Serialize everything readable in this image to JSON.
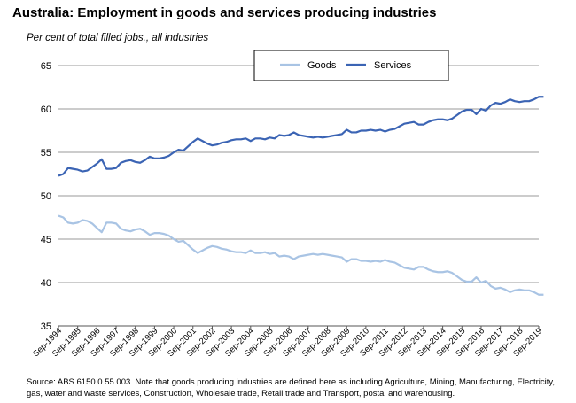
{
  "title": "Australia: Employment in goods and services producing industries",
  "subtitle": "Per cent of total filled jobs., all industries",
  "source": "Source: ABS 6150.0.55.003.  Note that goods producing industries are defined here as including Agriculture, Mining, Manufacturing, Electricity, gas, water and waste services, Construction, Wholesale trade, Retail trade and Transport, postal and warehousing.",
  "chart_data": {
    "type": "line",
    "title": "Australia: Employment in goods and services producing industries",
    "ylabel": "Per cent of total filled jobs., all industries",
    "xlabel": "",
    "ylim": [
      35,
      65
    ],
    "yticks": [
      35,
      40,
      45,
      50,
      55,
      60,
      65
    ],
    "grid": true,
    "legend_position": "top-right",
    "x_ticks": [
      "Sep-1994",
      "Sep-1995",
      "Sep-1996",
      "Sep-1997",
      "Sep-1998",
      "Sep-1999",
      "Sep-2000",
      "Sep-2001",
      "Sep-2002",
      "Sep-2003",
      "Sep-2004",
      "Sep-2005",
      "Sep-2006",
      "Sep-2007",
      "Sep-2008",
      "Sep-2009",
      "Sep-2010",
      "Sep-2011",
      "Sep-2012",
      "Sep-2013",
      "Sep-2014",
      "Sep-2015",
      "Sep-2016",
      "Sep-2017",
      "Sep-2018",
      "Sep-2019"
    ],
    "x_start": 1994.75,
    "x_end": 2019.75,
    "x_step": 0.25,
    "series": [
      {
        "name": "Goods",
        "color": "#A9C4E4",
        "values": [
          47.7,
          47.5,
          46.9,
          46.8,
          46.9,
          47.2,
          47.1,
          46.8,
          46.3,
          45.8,
          46.9,
          46.9,
          46.8,
          46.2,
          46.0,
          45.9,
          46.1,
          46.2,
          45.9,
          45.5,
          45.7,
          45.7,
          45.6,
          45.4,
          45.0,
          44.7,
          44.8,
          44.3,
          43.8,
          43.4,
          43.7,
          44.0,
          44.2,
          44.1,
          43.9,
          43.8,
          43.6,
          43.5,
          43.5,
          43.4,
          43.7,
          43.4,
          43.4,
          43.5,
          43.3,
          43.4,
          43.0,
          43.1,
          43.0,
          42.7,
          43.0,
          43.1,
          43.2,
          43.3,
          43.2,
          43.3,
          43.2,
          43.1,
          43.0,
          42.9,
          42.4,
          42.7,
          42.7,
          42.5,
          42.5,
          42.4,
          42.5,
          42.4,
          42.6,
          42.4,
          42.3,
          42.0,
          41.7,
          41.6,
          41.5,
          41.8,
          41.8,
          41.5,
          41.3,
          41.2,
          41.2,
          41.3,
          41.1,
          40.7,
          40.3,
          40.1,
          40.1,
          40.6,
          40.0,
          40.2,
          39.6,
          39.3,
          39.4,
          39.2,
          38.9,
          39.1,
          39.2,
          39.1,
          39.1,
          38.9,
          38.6,
          38.6
        ]
      },
      {
        "name": "Services",
        "color": "#3B64B4",
        "values": [
          52.3,
          52.5,
          53.2,
          53.1,
          53.0,
          52.8,
          52.9,
          53.3,
          53.7,
          54.2,
          53.1,
          53.1,
          53.2,
          53.8,
          54.0,
          54.1,
          53.9,
          53.8,
          54.1,
          54.5,
          54.3,
          54.3,
          54.4,
          54.6,
          55.0,
          55.3,
          55.2,
          55.7,
          56.2,
          56.6,
          56.3,
          56.0,
          55.8,
          55.9,
          56.1,
          56.2,
          56.4,
          56.5,
          56.5,
          56.6,
          56.3,
          56.6,
          56.6,
          56.5,
          56.7,
          56.6,
          57.0,
          56.9,
          57.0,
          57.3,
          57.0,
          56.9,
          56.8,
          56.7,
          56.8,
          56.7,
          56.8,
          56.9,
          57.0,
          57.1,
          57.6,
          57.3,
          57.3,
          57.5,
          57.5,
          57.6,
          57.5,
          57.6,
          57.4,
          57.6,
          57.7,
          58.0,
          58.3,
          58.4,
          58.5,
          58.2,
          58.2,
          58.5,
          58.7,
          58.8,
          58.8,
          58.7,
          58.9,
          59.3,
          59.7,
          59.9,
          59.9,
          59.4,
          60.0,
          59.8,
          60.4,
          60.7,
          60.6,
          60.8,
          61.1,
          60.9,
          60.8,
          60.9,
          60.9,
          61.1,
          61.4,
          61.4
        ]
      }
    ]
  }
}
